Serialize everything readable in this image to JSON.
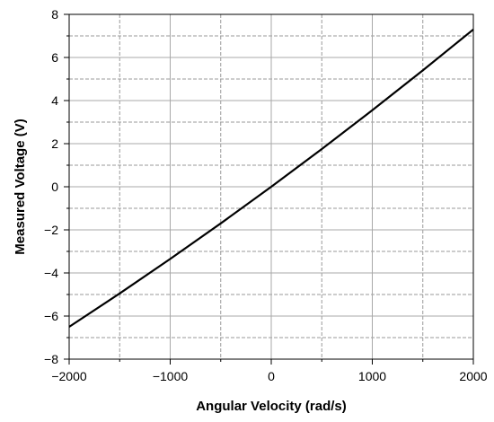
{
  "chart_data": {
    "type": "line",
    "title": "",
    "xlabel": "Angular Velocity (rad/s)",
    "ylabel": "Measured Voltage (V)",
    "xlim": [
      -2000,
      2000
    ],
    "ylim": [
      -8,
      8
    ],
    "x_ticks": [
      -2000,
      -1000,
      0,
      1000,
      2000
    ],
    "y_ticks": [
      -8,
      -6,
      -4,
      -2,
      0,
      2,
      4,
      6,
      8
    ],
    "x_tick_labels": [
      "−2000",
      "−1000",
      "0",
      "1000",
      "2000"
    ],
    "y_tick_labels": [
      "−8",
      "−6",
      "−4",
      "−2",
      "0",
      "2",
      "4",
      "6",
      "8"
    ],
    "x_minor_gridlines": [
      -1500,
      -500,
      500,
      1500
    ],
    "y_minor_gridlines": [
      -7,
      -5,
      -3,
      -1,
      1,
      3,
      5,
      7
    ],
    "grid": true,
    "series": [
      {
        "color": "#000000",
        "x": [
          -2000,
          -1500,
          -1000,
          -500,
          0,
          500,
          1000,
          1500,
          2000
        ],
        "y": [
          -6.5,
          -4.95,
          -3.35,
          -1.7,
          0.0,
          1.75,
          3.55,
          5.4,
          7.3
        ]
      }
    ]
  }
}
